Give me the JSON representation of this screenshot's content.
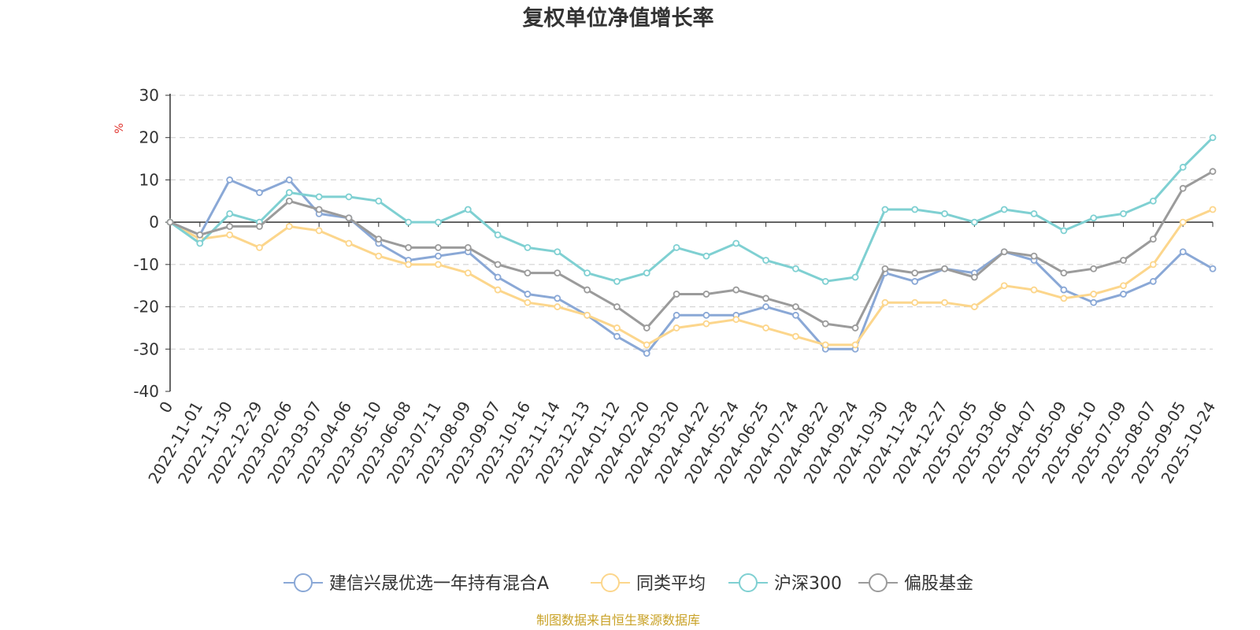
{
  "chart_data": {
    "type": "line",
    "title": "复权单位净值增长率",
    "ylabel": "%",
    "ylim": [
      -40,
      30
    ],
    "yticks": [
      30,
      20,
      10,
      0,
      -10,
      -20,
      -30,
      -40
    ],
    "grid": true,
    "legend_position": "bottom",
    "x_tick_labels": [
      "0",
      "2022-11-01",
      "2022-11-30",
      "2022-12-29",
      "2023-02-06",
      "2023-03-07",
      "2023-04-06",
      "2023-05-10",
      "2023-06-08",
      "2023-07-11",
      "2023-08-09",
      "2023-09-07",
      "2023-10-16",
      "2023-11-14",
      "2023-12-13",
      "2024-01-12",
      "2024-02-20",
      "2024-03-20",
      "2024-04-22",
      "2024-05-24",
      "2024-06-25",
      "2024-07-24",
      "2024-08-22",
      "2024-09-24",
      "2024-10-30",
      "2024-11-28",
      "2024-12-27",
      "2025-02-05",
      "2025-03-06",
      "2025-04-07",
      "2025-05-09",
      "2025-06-10",
      "2025-07-09",
      "2025-08-07",
      "2025-09-05",
      "2025-10-24"
    ],
    "x_index": [
      0,
      1,
      2,
      3,
      4,
      5,
      6,
      7,
      8,
      9,
      10,
      11,
      12,
      13,
      14,
      15,
      16,
      17,
      18,
      19,
      20,
      21,
      22,
      23,
      24,
      25,
      26,
      27,
      28,
      29,
      30,
      31,
      32,
      33,
      34,
      35
    ],
    "series": [
      {
        "name": "建信兴晟优选一年持有混合A",
        "color": "#8aa8d6",
        "values": [
          0,
          -3,
          10,
          7,
          10,
          2,
          1,
          -5,
          -9,
          -8,
          -7,
          -13,
          -17,
          -18,
          -22,
          -27,
          -31,
          -22,
          -22,
          -22,
          -20,
          -22,
          -30,
          -30,
          -12,
          -14,
          -11,
          -12,
          -7,
          -9,
          -16,
          -19,
          -17,
          -14,
          -7,
          -11
        ]
      },
      {
        "name": "同类平均",
        "color": "#fcd68c",
        "values": [
          0,
          -4,
          -3,
          -6,
          -1,
          -2,
          -5,
          -8,
          -10,
          -10,
          -12,
          -16,
          -19,
          -20,
          -22,
          -25,
          -29,
          -25,
          -24,
          -23,
          -25,
          -27,
          -29,
          -29,
          -19,
          -19,
          -19,
          -20,
          -15,
          -16,
          -18,
          -17,
          -15,
          -10,
          0,
          3
        ]
      },
      {
        "name": "沪深300",
        "color": "#7fd0d2",
        "values": [
          0,
          -5,
          2,
          0,
          7,
          6,
          6,
          5,
          0,
          0,
          3,
          -3,
          -6,
          -7,
          -12,
          -14,
          -12,
          -6,
          -8,
          -5,
          -9,
          -11,
          -14,
          -13,
          3,
          3,
          2,
          0,
          3,
          2,
          -2,
          1,
          2,
          5,
          13,
          20
        ]
      },
      {
        "name": "偏股基金",
        "color": "#9b9b9b",
        "values": [
          0,
          -3,
          -1,
          -1,
          5,
          3,
          1,
          -4,
          -6,
          -6,
          -6,
          -10,
          -12,
          -12,
          -16,
          -20,
          -25,
          -17,
          -17,
          -16,
          -18,
          -20,
          -24,
          -25,
          -11,
          -12,
          -11,
          -13,
          -7,
          -8,
          -12,
          -11,
          -9,
          -4,
          8,
          12
        ]
      }
    ]
  },
  "footer": {
    "source": "制图数据来自恒生聚源数据库"
  }
}
